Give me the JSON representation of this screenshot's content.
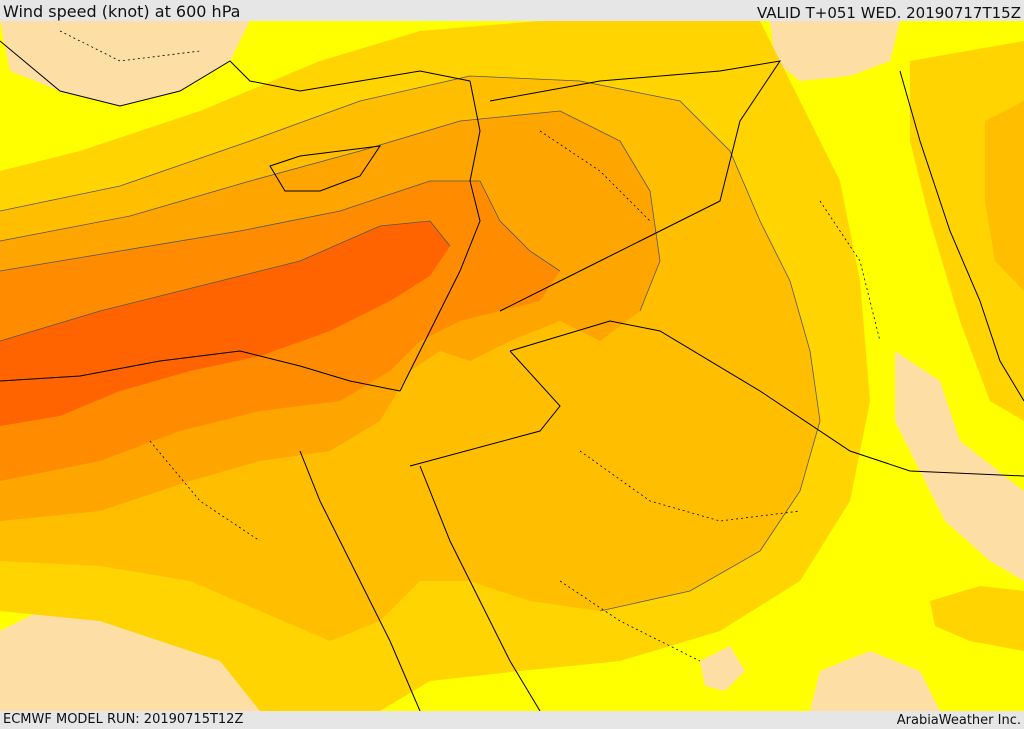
{
  "header": {
    "title": "Wind speed (knot) at 600 hPa",
    "valid_time": "VALID T+051 WED. 20190717T15Z"
  },
  "footer": {
    "model_run": "ECMWF MODEL RUN: 20190715T12Z",
    "credit": "ArabiaWeather Inc."
  },
  "map": {
    "variable": "wind speed",
    "level": "600 hPa",
    "unit": "knot",
    "colors": {
      "band_lowest": "#fddfa6",
      "band_1": "#ffff00",
      "band_2": "#ffd400",
      "band_3": "#ffbf00",
      "band_4": "#ffa500",
      "band_5": "#ff8c00",
      "band_highest": "#ff6400",
      "boundary_line": "#000000",
      "contour_line": "#555555"
    }
  }
}
